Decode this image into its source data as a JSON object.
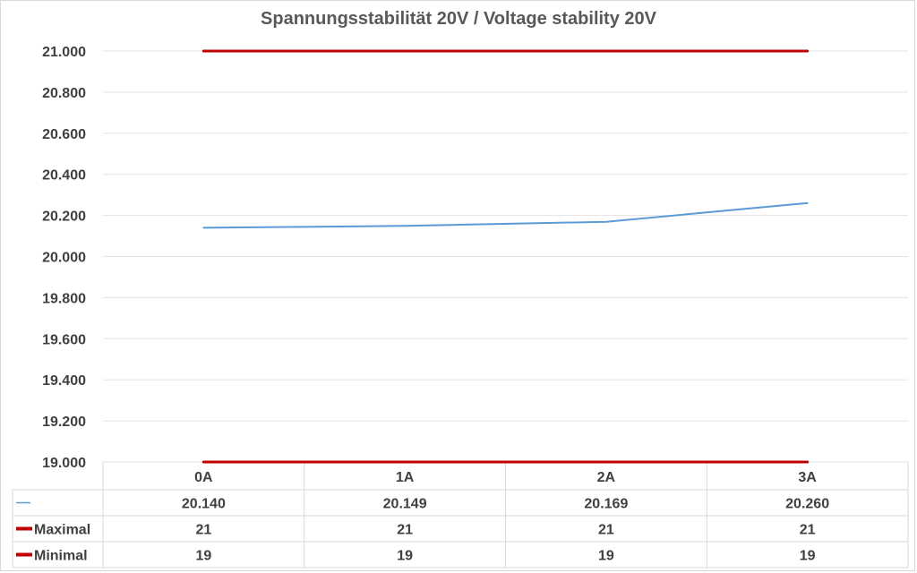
{
  "chart_data": {
    "type": "line",
    "title": "Spannungsstabilität 20V / Voltage stability 20V",
    "categories": [
      "0A",
      "1A",
      "2A",
      "3A"
    ],
    "ylim": [
      19.0,
      21.0
    ],
    "yticks": [
      19.0,
      19.2,
      19.4,
      19.6,
      19.8,
      20.0,
      20.2,
      20.4,
      20.6,
      20.8,
      21.0
    ],
    "ytick_labels": [
      "19.000",
      "19.200",
      "19.400",
      "19.600",
      "19.800",
      "20.000",
      "20.200",
      "20.400",
      "20.600",
      "20.800",
      "21.000"
    ],
    "grid": true,
    "legend": "data-table",
    "series": [
      {
        "name": "",
        "values": [
          20.14,
          20.149,
          20.169,
          20.26
        ],
        "labels": [
          "20.140",
          "20.149",
          "20.169",
          "20.260"
        ],
        "color": "#5b9bd5"
      },
      {
        "name": "Maximal",
        "values": [
          21,
          21,
          21,
          21
        ],
        "labels": [
          "21",
          "21",
          "21",
          "21"
        ],
        "color": "#c00000"
      },
      {
        "name": "Minimal",
        "values": [
          19,
          19,
          19,
          19
        ],
        "labels": [
          "19",
          "19",
          "19",
          "19"
        ],
        "color": "#c00000"
      }
    ]
  }
}
